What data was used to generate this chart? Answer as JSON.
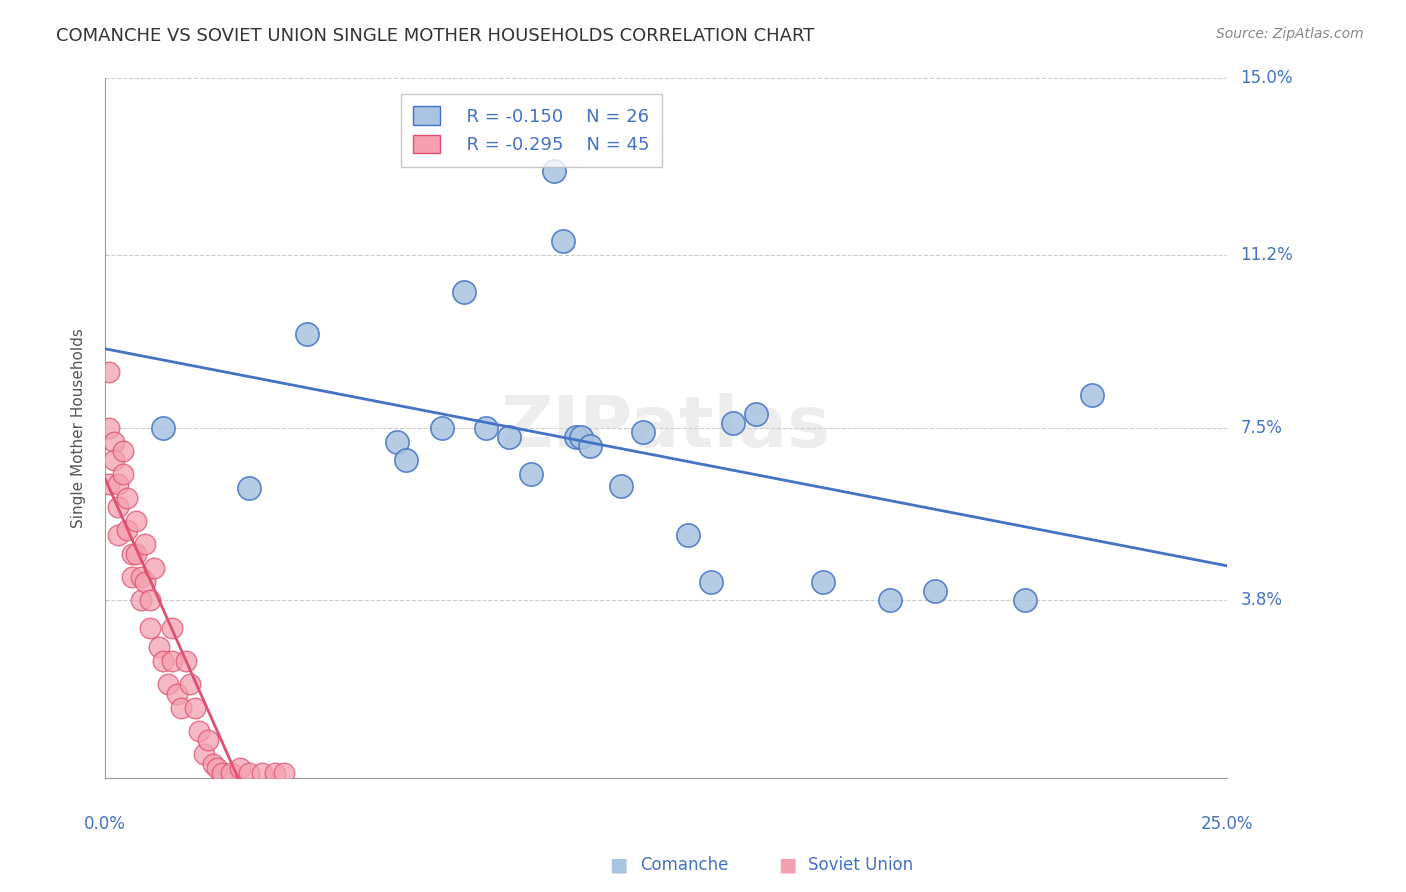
{
  "title": "COMANCHE VS SOVIET UNION SINGLE MOTHER HOUSEHOLDS CORRELATION CHART",
  "source": "Source: ZipAtlas.com",
  "ylabel": "Single Mother Households",
  "x_min": 0.0,
  "x_max": 0.25,
  "y_min": 0.0,
  "y_max": 0.15,
  "yticks": [
    0.038,
    0.075,
    0.112,
    0.15
  ],
  "ytick_labels": [
    "3.8%",
    "7.5%",
    "11.2%",
    "15.0%"
  ],
  "xticks": [
    0.0,
    0.05,
    0.1,
    0.15,
    0.2,
    0.25
  ],
  "legend_r1": "R = -0.150",
  "legend_n1": "N = 26",
  "legend_r2": "R = -0.295",
  "legend_n2": "N = 45",
  "watermark": "ZIPatlas",
  "comanche_color": "#a8c4e0",
  "soviet_color": "#f4a0b0",
  "line_comanche_color": "#4472c4",
  "line_soviet_color": "#e05070",
  "axis_color": "#4472c4",
  "grid_color": "#cccccc",
  "comanche_x": [
    0.013,
    0.032,
    0.045,
    0.065,
    0.067,
    0.075,
    0.08,
    0.085,
    0.09,
    0.095,
    0.1,
    0.102,
    0.105,
    0.106,
    0.108,
    0.115,
    0.12,
    0.13,
    0.135,
    0.14,
    0.145,
    0.16,
    0.175,
    0.185,
    0.205,
    0.22
  ],
  "comanche_y": [
    0.075,
    0.062,
    0.095,
    0.072,
    0.068,
    0.075,
    0.104,
    0.075,
    0.073,
    0.065,
    0.13,
    0.115,
    0.073,
    0.073,
    0.071,
    0.0625,
    0.074,
    0.052,
    0.042,
    0.076,
    0.078,
    0.042,
    0.038,
    0.04,
    0.038,
    0.082
  ],
  "soviet_x": [
    0.001,
    0.001,
    0.001,
    0.002,
    0.002,
    0.003,
    0.003,
    0.003,
    0.004,
    0.004,
    0.005,
    0.005,
    0.006,
    0.006,
    0.007,
    0.007,
    0.008,
    0.008,
    0.009,
    0.009,
    0.01,
    0.01,
    0.011,
    0.012,
    0.013,
    0.014,
    0.015,
    0.015,
    0.016,
    0.017,
    0.018,
    0.019,
    0.02,
    0.021,
    0.022,
    0.023,
    0.024,
    0.025,
    0.026,
    0.028,
    0.03,
    0.032,
    0.035,
    0.038,
    0.04
  ],
  "soviet_y": [
    0.087,
    0.075,
    0.063,
    0.072,
    0.068,
    0.063,
    0.058,
    0.052,
    0.07,
    0.065,
    0.06,
    0.053,
    0.048,
    0.043,
    0.055,
    0.048,
    0.043,
    0.038,
    0.05,
    0.042,
    0.038,
    0.032,
    0.045,
    0.028,
    0.025,
    0.02,
    0.032,
    0.025,
    0.018,
    0.015,
    0.025,
    0.02,
    0.015,
    0.01,
    0.005,
    0.008,
    0.003,
    0.002,
    0.001,
    0.001,
    0.002,
    0.001,
    0.001,
    0.001,
    0.001
  ]
}
